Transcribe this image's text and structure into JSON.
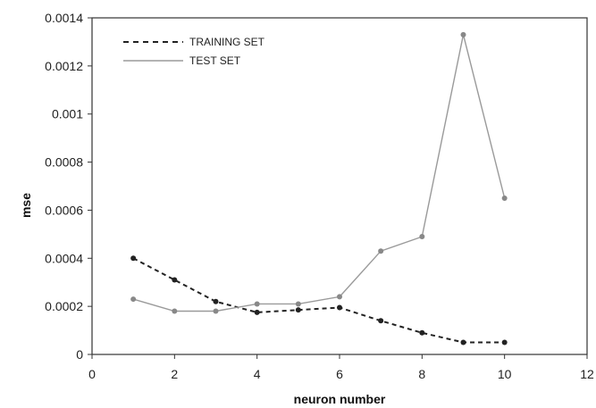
{
  "chart_data": {
    "type": "line",
    "xlabel": "neuron number",
    "ylabel": "mse",
    "xlim": [
      0,
      12
    ],
    "ylim": [
      0,
      0.0014
    ],
    "x_ticks": [
      "0",
      "2",
      "4",
      "6",
      "8",
      "10",
      "12"
    ],
    "y_ticks": [
      "0",
      "0.0002",
      "0.0004",
      "0.0006",
      "0.0008",
      "0.001",
      "0.0012",
      "0.0014"
    ],
    "x": [
      1,
      2,
      3,
      4,
      5,
      6,
      7,
      8,
      9,
      10
    ],
    "grid": false,
    "legend_position": "top-left",
    "series": [
      {
        "name": "TRAINING SET",
        "style": "dashed",
        "color": "#222222",
        "values": [
          0.0004,
          0.00031,
          0.00022,
          0.000175,
          0.000185,
          0.000195,
          0.00014,
          9e-05,
          5e-05,
          5e-05
        ]
      },
      {
        "name": "TEST SET",
        "style": "solid",
        "color": "#9a9a9a",
        "values": [
          0.00023,
          0.00018,
          0.00018,
          0.00021,
          0.00021,
          0.00024,
          0.00043,
          0.00049,
          0.00133,
          0.00065
        ]
      }
    ]
  }
}
